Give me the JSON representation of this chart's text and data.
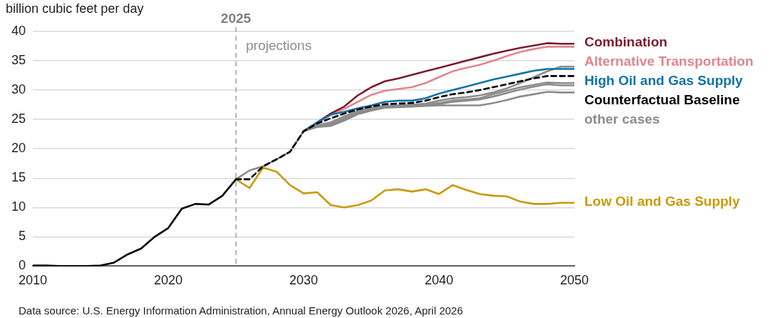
{
  "chart_data": {
    "type": "line",
    "ylabel": "billion cubic feet per day",
    "xlim": [
      2010,
      2050
    ],
    "xticks": [
      2010,
      2020,
      2030,
      2040,
      2050
    ],
    "ylim": [
      0,
      40
    ],
    "yticks": [
      0,
      5,
      10,
      15,
      20,
      25,
      30,
      35,
      40
    ],
    "grid": "y",
    "legend": "right",
    "marker": "none",
    "line_style": "solid",
    "ref_lines": [
      {
        "axis": "x",
        "value": 2025,
        "label": "2025",
        "color": "#b3b3b3",
        "line_style": "dashed"
      }
    ],
    "annotations": [
      {
        "text": "projections",
        "x": 2025,
        "y": 37.5
      },
      "Data source: U.S. Energy Information Administration, Annual Energy Outlook 2026, April 2026"
    ],
    "series": [
      {
        "color": "#8c8c8c",
        "x": [
          2025,
          2026,
          2027,
          2028,
          2029,
          2030,
          2031,
          2032,
          2033,
          2034,
          2035,
          2036,
          2037,
          2038,
          2039,
          2040,
          2041,
          2042,
          2043,
          2044,
          2045,
          2046,
          2047,
          2048,
          2049,
          2050
        ],
        "values": [
          14.8,
          16.3,
          17,
          18.2,
          19.5,
          23,
          24,
          24.5,
          25.5,
          26.5,
          27,
          27.3,
          27.4,
          27.5,
          27.7,
          28.2,
          28.6,
          28.8,
          29.1,
          29.6,
          30.3,
          31.2,
          32.2,
          33.2,
          34,
          34
        ]
      },
      {
        "color": "#8c8c8c",
        "x": [
          2030,
          2031,
          2032,
          2033,
          2034,
          2035,
          2036,
          2037,
          2038,
          2039,
          2040,
          2041,
          2042,
          2043,
          2044,
          2045,
          2046,
          2047,
          2048,
          2049,
          2050
        ],
        "values": [
          23,
          23.8,
          24.2,
          25.2,
          26.2,
          26.8,
          27.2,
          27.3,
          27.4,
          27.5,
          27.8,
          28.2,
          28.4,
          28.6,
          29.3,
          29.9,
          30.5,
          30.9,
          31.3,
          31.2,
          31.2
        ]
      },
      {
        "color": "#8c8c8c",
        "x": [
          2030,
          2031,
          2032,
          2033,
          2034,
          2035,
          2036,
          2037,
          2038,
          2039,
          2040,
          2041,
          2042,
          2043,
          2044,
          2045,
          2046,
          2047,
          2048,
          2049,
          2050
        ],
        "values": [
          23,
          23.8,
          24,
          25,
          26,
          26.6,
          27.1,
          27.2,
          27.3,
          27.4,
          27.6,
          28,
          28.2,
          28.4,
          28.9,
          29.5,
          30.1,
          30.6,
          31,
          30.8,
          30.8
        ]
      },
      {
        "name": "other cases",
        "color": "#8c8c8c",
        "x": [
          2030,
          2031,
          2032,
          2033,
          2034,
          2035,
          2036,
          2037,
          2038,
          2039,
          2040,
          2041,
          2042,
          2043,
          2044,
          2045,
          2046,
          2047,
          2048,
          2049,
          2050
        ],
        "values": [
          23,
          23.7,
          23.9,
          24.8,
          25.9,
          26.5,
          27,
          27.1,
          27.2,
          27.3,
          27.4,
          27.4,
          27.4,
          27.4,
          27.8,
          28.3,
          28.9,
          29.3,
          29.7,
          29.6,
          29.6
        ]
      },
      {
        "name": "Low Oil and Gas Supply",
        "color": "#c99a06",
        "x": [
          2025,
          2026,
          2027,
          2028,
          2029,
          2030,
          2031,
          2032,
          2033,
          2034,
          2035,
          2036,
          2037,
          2038,
          2039,
          2040,
          2041,
          2042,
          2043,
          2044,
          2045,
          2046,
          2047,
          2048,
          2049,
          2050
        ],
        "values": [
          14.8,
          13.3,
          16.8,
          16.1,
          13.8,
          12.4,
          12.6,
          10.4,
          10,
          10.4,
          11.2,
          12.9,
          13.1,
          12.7,
          13.1,
          12.3,
          13.8,
          13,
          12.3,
          12,
          11.9,
          11,
          10.6,
          10.6,
          10.8,
          10.8
        ]
      },
      {
        "name": "Alternative Transportation",
        "color": "#e0868f",
        "x": [
          2030,
          2031,
          2032,
          2033,
          2034,
          2035,
          2036,
          2037,
          2038,
          2039,
          2040,
          2041,
          2042,
          2043,
          2044,
          2045,
          2046,
          2047,
          2048,
          2049,
          2050
        ],
        "values": [
          23,
          24.4,
          25.8,
          26.8,
          28,
          29.2,
          29.9,
          30.2,
          30.5,
          31.2,
          32.2,
          33.2,
          33.8,
          34.3,
          35,
          35.8,
          36.5,
          37,
          37.4,
          37.4,
          37.4
        ]
      },
      {
        "name": "Combination",
        "color": "#7b1c2e",
        "x": [
          2030,
          2031,
          2032,
          2033,
          2034,
          2035,
          2036,
          2037,
          2038,
          2039,
          2040,
          2041,
          2042,
          2043,
          2044,
          2045,
          2046,
          2047,
          2048,
          2049,
          2050
        ],
        "values": [
          23,
          24.5,
          26,
          27.2,
          29.1,
          30.5,
          31.5,
          32,
          32.6,
          33.2,
          33.8,
          34.4,
          35,
          35.6,
          36.2,
          36.7,
          37.2,
          37.6,
          38,
          37.9,
          37.9
        ]
      },
      {
        "name": "High Oil and Gas Supply",
        "color": "#0e73a6",
        "x": [
          2030,
          2031,
          2032,
          2033,
          2034,
          2035,
          2036,
          2037,
          2038,
          2039,
          2040,
          2041,
          2042,
          2043,
          2044,
          2045,
          2046,
          2047,
          2048,
          2049,
          2050
        ],
        "values": [
          23,
          24.5,
          25.8,
          26.3,
          26.9,
          27.4,
          28,
          28.2,
          28.2,
          28.6,
          29.4,
          30,
          30.6,
          31.2,
          31.8,
          32.3,
          32.8,
          33.3,
          33.6,
          33.6,
          33.6
        ]
      },
      {
        "color": "#000000",
        "x": [
          2010,
          2011,
          2012,
          2013,
          2014,
          2015,
          2016,
          2017,
          2018,
          2019,
          2020,
          2021,
          2022,
          2023,
          2024,
          2025
        ],
        "values": [
          0.1,
          0.1,
          0,
          0,
          0,
          0.1,
          0.6,
          2,
          3,
          5,
          6.5,
          9.8,
          10.6,
          10.5,
          12,
          14.8
        ]
      },
      {
        "name": "Counterfactual Baseline",
        "color": "#000000",
        "line_style": "dashed",
        "x": [
          2025,
          2026,
          2027,
          2028,
          2029,
          2030,
          2031,
          2032,
          2033,
          2034,
          2035,
          2036,
          2037,
          2038,
          2039,
          2040,
          2041,
          2042,
          2043,
          2044,
          2045,
          2046,
          2047,
          2048,
          2049,
          2050
        ],
        "values": [
          14.8,
          14.8,
          17,
          18.2,
          19.5,
          23,
          24.3,
          25.2,
          26,
          26.7,
          27.2,
          27.6,
          27.7,
          27.8,
          28.2,
          28.8,
          29.3,
          29.6,
          30,
          30.5,
          31,
          31.5,
          32,
          32.4,
          32.4,
          32.4
        ]
      }
    ]
  }
}
